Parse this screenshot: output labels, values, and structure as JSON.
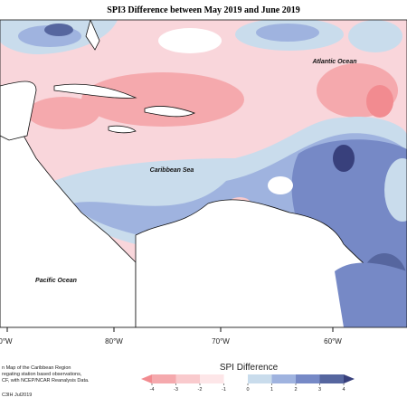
{
  "title": "SPI3 Difference between May 2019 and June 2019",
  "map": {
    "labels": [
      "Atlantic Ocean",
      "Caribbean Sea",
      "Pacific Ocean"
    ],
    "longitudes": [
      "0°W",
      "80°W",
      "70°W",
      "60°W"
    ]
  },
  "legend": {
    "title": "SPI Difference",
    "ticks": [
      -4,
      -3,
      -2,
      -1,
      0,
      1,
      2,
      3,
      4
    ],
    "colors": [
      "#f28b90",
      "#f5a9ad",
      "#f9cacd",
      "#fde6e8",
      "#ffffff",
      "#c9dcec",
      "#9fb3df",
      "#7689c6",
      "#56669f",
      "#38407c"
    ]
  },
  "footnote": [
    "n Map of the Caribbean Region",
    "regating station based observations,",
    "CF, with NCEP/NCAR Reanalysis Data.",
    "C3IH Jul2019"
  ]
}
